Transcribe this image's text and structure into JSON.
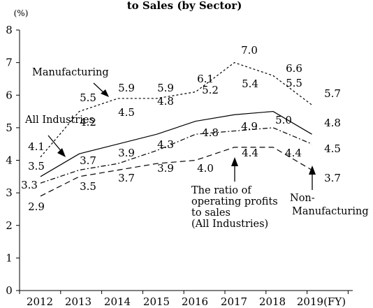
{
  "chart_data": {
    "type": "line",
    "title": "to Sales (by Sector)",
    "y_unit": "(%)",
    "ylim": [
      0,
      8
    ],
    "y_ticks": [
      "0",
      "1",
      "2",
      "3",
      "4",
      "5",
      "6",
      "7",
      "8"
    ],
    "x_tick_labels": [
      "2012",
      "2013",
      "2014",
      "2015",
      "2016",
      "2017",
      "2018",
      "2019(FY)"
    ],
    "categories": [
      "2012",
      "2013",
      "2014",
      "2015",
      "2016",
      "2017",
      "2018",
      "2019"
    ],
    "grid": false,
    "series": [
      {
        "name": "Manufacturing",
        "line_style": "dotted",
        "values": [
          4.1,
          5.5,
          5.9,
          5.9,
          6.1,
          7.0,
          6.6,
          5.7
        ]
      },
      {
        "name": "All Industries",
        "line_style": "solid",
        "values": [
          3.5,
          4.2,
          4.5,
          4.8,
          5.2,
          5.4,
          5.5,
          4.8
        ]
      },
      {
        "name": "",
        "line_style": "dash-dot",
        "values": [
          3.3,
          3.7,
          3.9,
          4.3,
          4.8,
          4.9,
          5.0,
          4.5
        ]
      },
      {
        "name": "",
        "line_style": "dashed",
        "values": [
          2.9,
          3.5,
          3.7,
          3.9,
          4.0,
          4.4,
          4.4,
          3.7
        ]
      }
    ],
    "data_labels": [
      [
        "4.1",
        "5.5",
        "5.9",
        "5.9",
        "6.1",
        "7.0",
        "6.6",
        "5.7"
      ],
      [
        "3.5",
        "4.2",
        "4.5",
        "4.8",
        "5.2",
        "5.4",
        "5.5",
        "4.8"
      ],
      [
        "3.3",
        "3.7",
        "3.9",
        "4.3",
        "4.8",
        "4.9",
        "5.0",
        "4.5"
      ],
      [
        "2.9",
        "3.5",
        "3.7",
        "3.9",
        "4.0",
        "4.4",
        "4.4",
        "3.7"
      ]
    ],
    "annotations": {
      "manufacturing": "Manufacturing",
      "all_industries": "All Industries",
      "ratio": [
        "The ratio of",
        "operating profits",
        "to sales",
        "(All Industries)"
      ],
      "non_manufacturing": [
        "Non-",
        "Manufacturing"
      ]
    }
  }
}
